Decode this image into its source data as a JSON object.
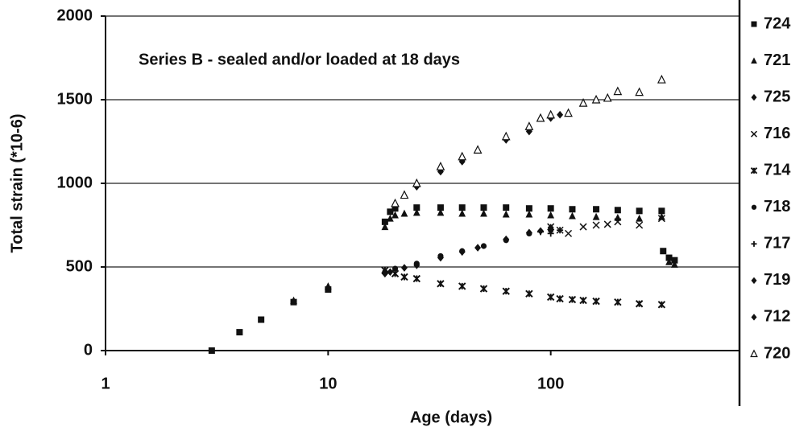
{
  "chart_data": {
    "type": "scatter",
    "annotation": "Series B - sealed and/or loaded at 18 days",
    "xlabel": "Age (days)",
    "ylabel": "Total strain (*10-6)",
    "xscale": "log",
    "xlim": [
      1,
      1000
    ],
    "xticks": [
      1,
      10,
      100,
      1000
    ],
    "ylim": [
      0,
      2000
    ],
    "yticks": [
      0,
      500,
      1000,
      1500,
      2000
    ],
    "grid": true,
    "legend": "right",
    "series": [
      {
        "name": "724",
        "marker": "square",
        "color": "#111111",
        "x": [
          3,
          4,
          5,
          7,
          10,
          18,
          19,
          20,
          25,
          32,
          40,
          50,
          63,
          80,
          100,
          125,
          160,
          200,
          250,
          315,
          320,
          340,
          360
        ],
        "values": [
          0,
          110,
          185,
          290,
          365,
          770,
          830,
          850,
          855,
          855,
          855,
          855,
          855,
          850,
          850,
          845,
          845,
          840,
          835,
          835,
          595,
          555,
          540
        ]
      },
      {
        "name": "721",
        "marker": "triangle",
        "color": "#111111",
        "x": [
          7,
          10,
          18,
          19,
          20,
          22,
          25,
          32,
          40,
          50,
          63,
          80,
          100,
          125,
          160,
          200,
          250,
          315,
          340,
          360
        ],
        "values": [
          300,
          385,
          740,
          790,
          810,
          820,
          825,
          825,
          820,
          820,
          815,
          815,
          810,
          805,
          800,
          795,
          790,
          800,
          530,
          515
        ]
      },
      {
        "name": "725",
        "marker": "diamond",
        "color": "#111111",
        "x": [
          20,
          25,
          32,
          40,
          63,
          80,
          100
        ],
        "values": [
          870,
          990,
          1080,
          1140,
          1265,
          1320,
          1395
        ]
      },
      {
        "name": "716",
        "marker": "x",
        "color": "#111111",
        "x": [
          100,
          110,
          120,
          140,
          160,
          180,
          200,
          250,
          315
        ],
        "values": [
          740,
          720,
          700,
          740,
          750,
          755,
          770,
          750,
          790
        ]
      },
      {
        "name": "714",
        "marker": "star",
        "color": "#111111",
        "x": [
          18,
          20,
          22,
          25,
          32,
          40,
          50,
          63,
          80,
          100,
          110,
          125,
          140,
          160,
          200,
          250,
          315
        ],
        "values": [
          480,
          460,
          440,
          430,
          400,
          385,
          370,
          355,
          340,
          320,
          310,
          305,
          300,
          295,
          290,
          280,
          275
        ]
      },
      {
        "name": "718",
        "marker": "circle",
        "color": "#111111",
        "x": [
          18,
          20,
          25,
          32,
          40,
          50,
          63,
          80,
          100
        ],
        "values": [
          470,
          490,
          520,
          565,
          595,
          625,
          660,
          700,
          720
        ]
      },
      {
        "name": "717",
        "marker": "plus",
        "color": "#111111",
        "x": [
          90,
          100,
          110
        ],
        "values": [
          710,
          700,
          720
        ]
      },
      {
        "name": "719",
        "marker": "diamond",
        "color": "#111111",
        "x": [
          18,
          19,
          22,
          25,
          32,
          40,
          47,
          63,
          80,
          90,
          100
        ],
        "values": [
          460,
          470,
          495,
          510,
          555,
          590,
          615,
          665,
          705,
          715,
          735
        ]
      },
      {
        "name": "712",
        "marker": "diamond",
        "color": "#111111",
        "x": [
          20,
          25,
          32,
          40,
          63,
          80,
          100,
          110
        ],
        "values": [
          860,
          980,
          1070,
          1130,
          1260,
          1310,
          1390,
          1410
        ]
      },
      {
        "name": "720",
        "marker": "triangle-open",
        "color": "#111111",
        "x": [
          20,
          22,
          25,
          32,
          40,
          47,
          63,
          80,
          90,
          100,
          120,
          140,
          160,
          180,
          200,
          250,
          315
        ],
        "values": [
          880,
          930,
          1000,
          1100,
          1160,
          1200,
          1280,
          1340,
          1390,
          1410,
          1420,
          1480,
          1500,
          1510,
          1550,
          1545,
          1620
        ]
      }
    ]
  }
}
